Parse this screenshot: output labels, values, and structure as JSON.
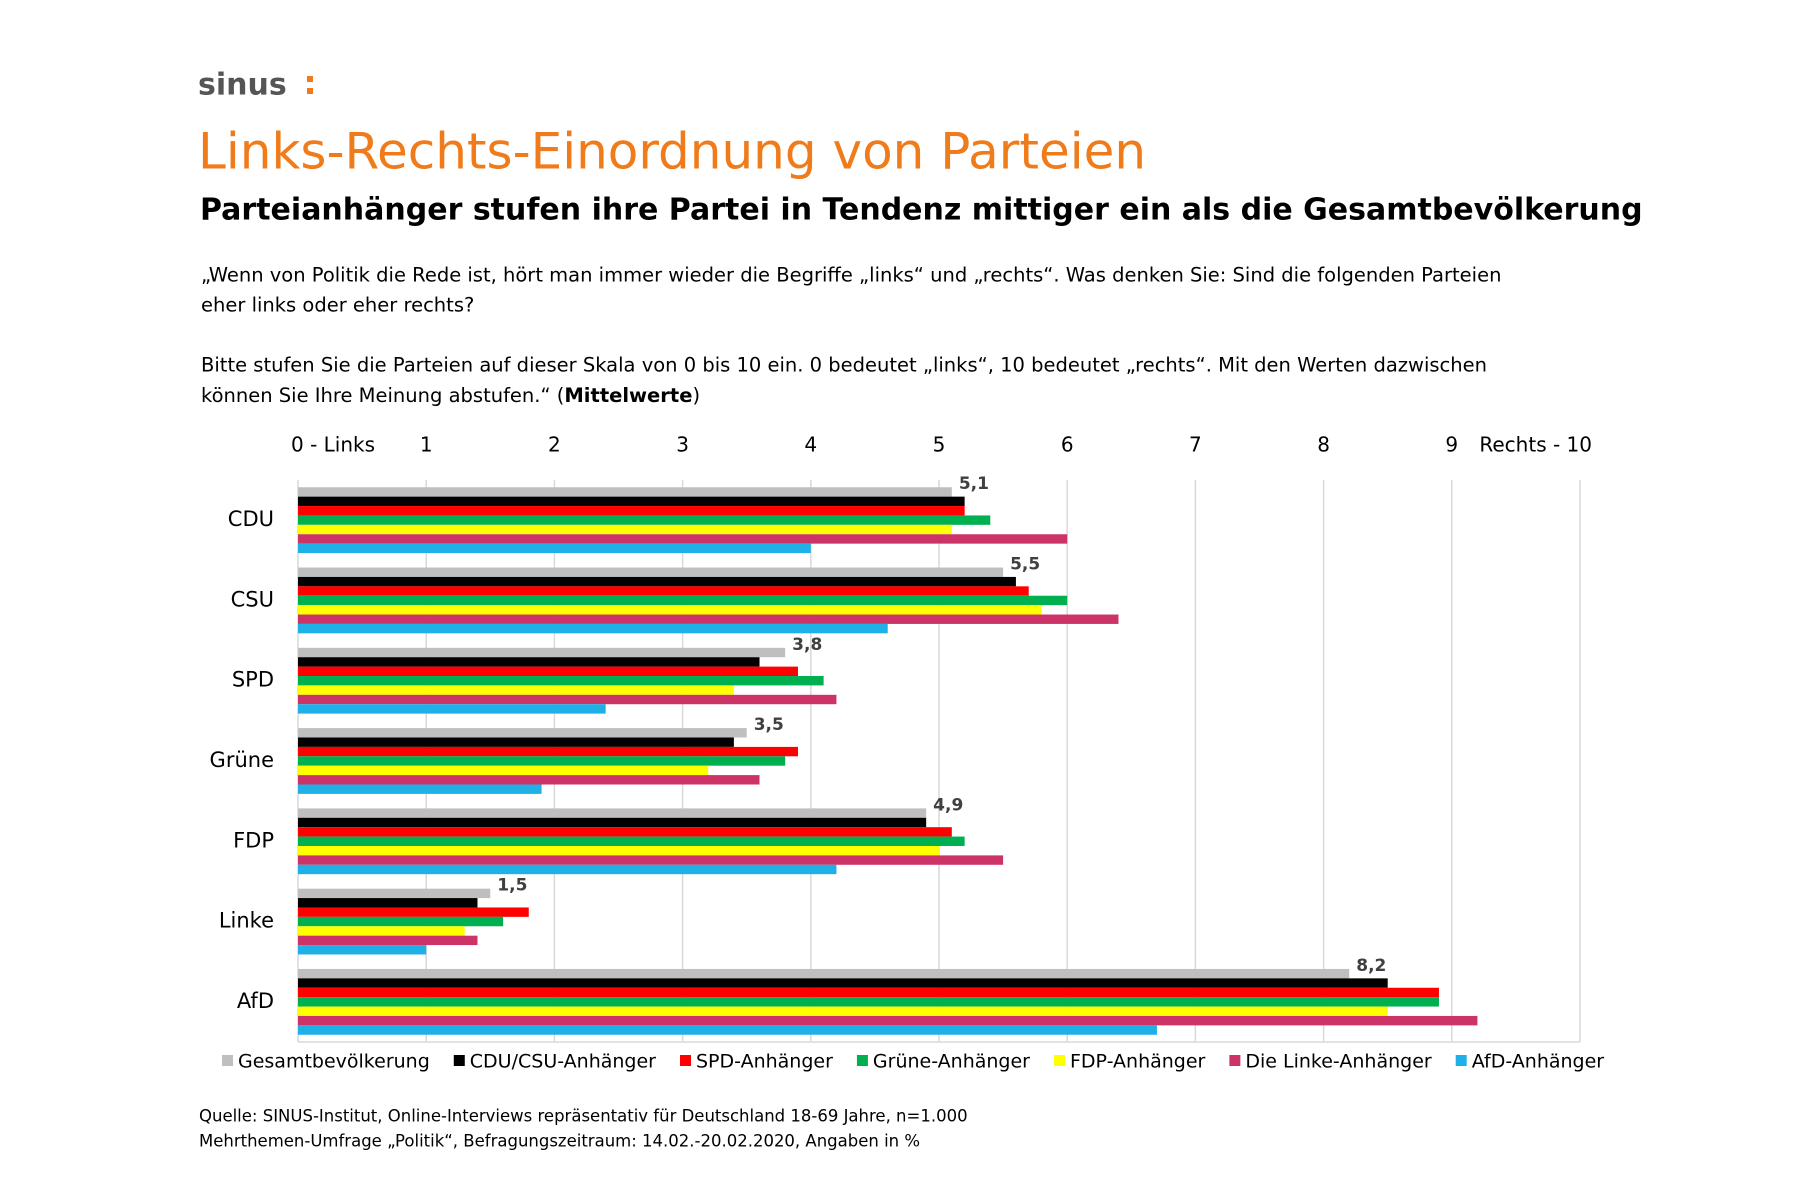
{
  "header": {
    "logo": "sinus",
    "title": "Links-Rechts-Einordnung von Parteien",
    "subtitle": "Parteianhänger stufen ihre Partei in Tendenz mittiger ein als die Gesamtbevölkerung",
    "question": [
      "„Wenn von Politik die Rede ist, hört man immer wieder die Begriffe „links“ und „rechts“. Was denken Sie: Sind die folgenden Parteien",
      "eher links oder eher rechts?"
    ],
    "instruction": [
      "Bitte stufen Sie die Parteien auf dieser Skala von 0 bis 10 ein. 0 bedeutet „links“, 10 bedeutet „rechts“. Mit den Werten dazwischen"
    ],
    "instruction_end": [
      "können Sie Ihre Meinung abstufen.“ (",
      "Mittelwerte",
      ")"
    ]
  },
  "chart_data": {
    "type": "hbar",
    "categories": [
      "CDU",
      "CSU",
      "SPD",
      "Grüne",
      "FDP",
      "Linke",
      "AfD"
    ],
    "series": [
      {
        "name": "Gesamtbevölkerung",
        "color": "#bfbfbf",
        "values": [
          5.1,
          5.5,
          3.8,
          3.5,
          4.9,
          1.5,
          8.2
        ],
        "value_labels": [
          "5,1",
          "5,5",
          "3,8",
          "3,5",
          "4,9",
          "1,5",
          "8,2"
        ]
      },
      {
        "name": "CDU/CSU-Anhänger",
        "color": "#000000",
        "values": [
          5.2,
          5.6,
          3.6,
          3.4,
          4.9,
          1.4,
          8.5
        ]
      },
      {
        "name": "SPD-Anhänger",
        "color": "#ff0000",
        "values": [
          5.2,
          5.7,
          3.9,
          3.9,
          5.1,
          1.8,
          8.9
        ]
      },
      {
        "name": "Grüne-Anhänger",
        "color": "#00b050",
        "values": [
          5.4,
          6.0,
          4.1,
          3.8,
          5.2,
          1.6,
          8.9
        ]
      },
      {
        "name": "FDP-Anhänger",
        "color": "#ffff00",
        "values": [
          5.1,
          5.8,
          3.4,
          3.2,
          5.0,
          1.3,
          8.5
        ]
      },
      {
        "name": "Die Linke-Anhänger",
        "color": "#cc3366",
        "values": [
          6.0,
          6.4,
          4.2,
          3.6,
          5.5,
          1.4,
          9.2
        ]
      },
      {
        "name": "AfD-Anhänger",
        "color": "#1fb0e8",
        "values": [
          4.0,
          4.6,
          2.4,
          1.9,
          4.2,
          1.0,
          6.7
        ]
      }
    ],
    "xlim": [
      0,
      10
    ],
    "xticks": [
      {
        "value": 0,
        "label": "0 - Links"
      },
      1,
      2,
      3,
      4,
      5,
      6,
      7,
      8,
      9,
      {
        "value": 10,
        "label": "Rechts - 10"
      }
    ],
    "grid": true
  },
  "footer": {
    "source": [
      "Quelle: SINUS-Institut, Online-Interviews repräsentativ für Deutschland 18-69 Jahre, n=1.000",
      "Mehrthemen-Umfrage  „Politik“, Befragungszeitraum: 14.02.-20.02.2020, Angaben in %"
    ]
  }
}
